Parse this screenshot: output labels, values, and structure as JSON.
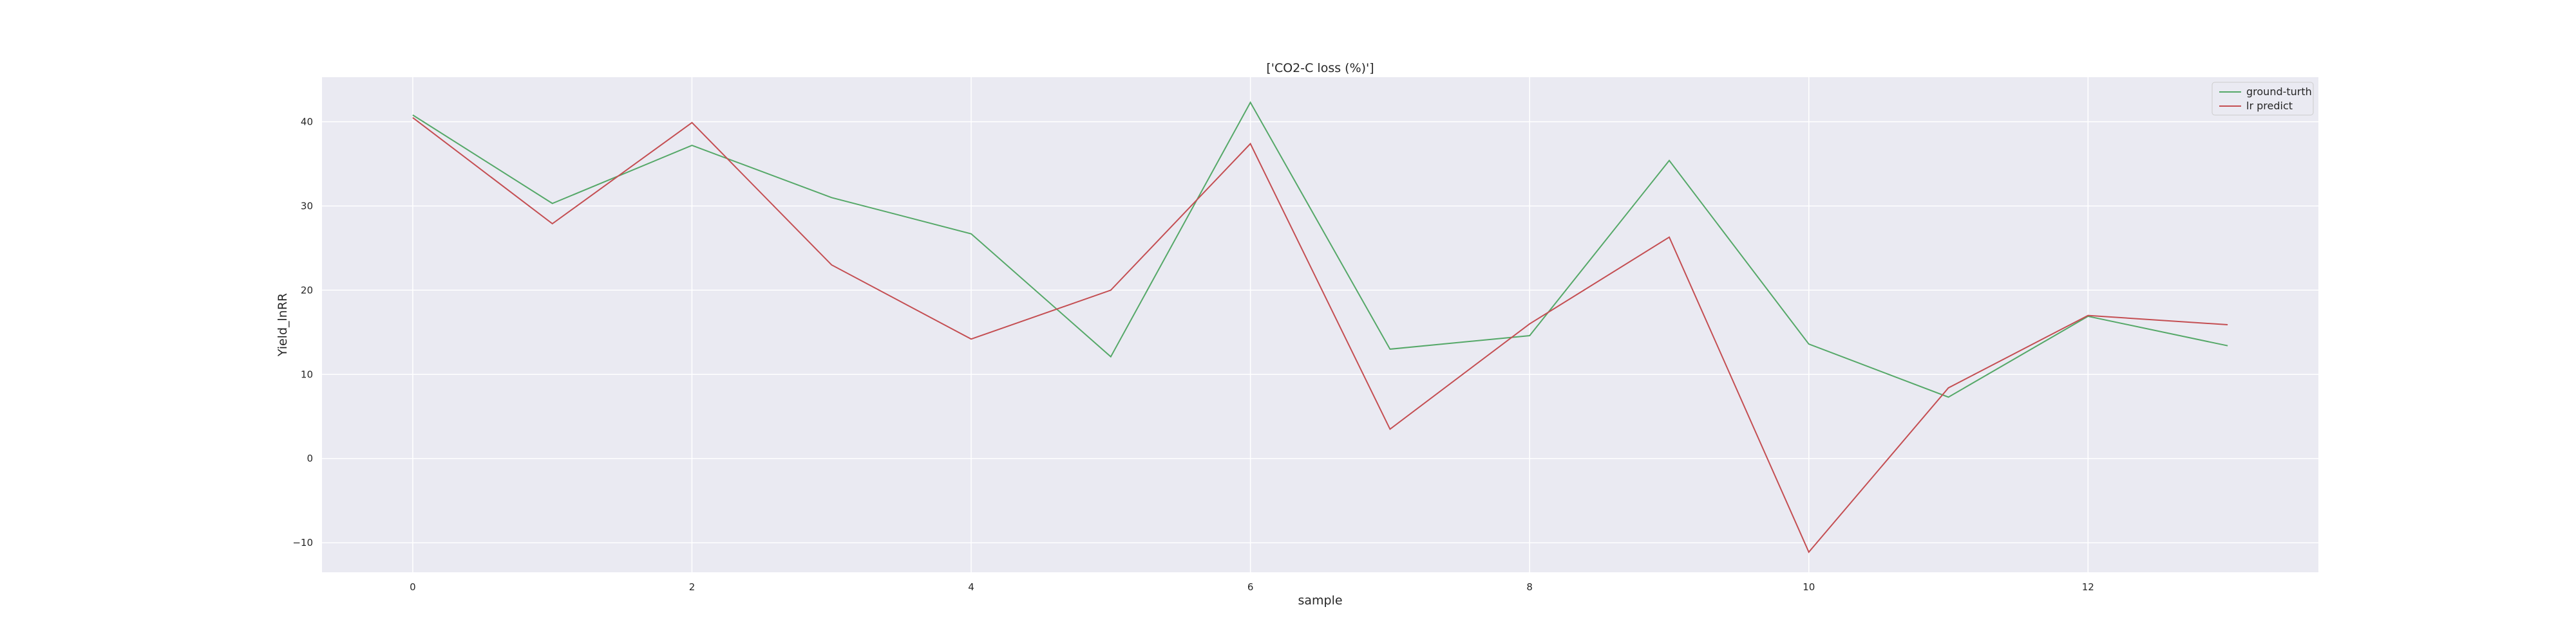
{
  "chart_data": {
    "type": "line",
    "title": "['CO2-C loss (%)']",
    "xlabel": "sample",
    "ylabel": "Yield_lnRR",
    "x": [
      0,
      1,
      2,
      3,
      4,
      5,
      6,
      7,
      8,
      9,
      10,
      11,
      12,
      13
    ],
    "xlim": [
      -0.65,
      13.65
    ],
    "ylim": [
      -13.5,
      45.3
    ],
    "xticks": [
      0,
      2,
      4,
      6,
      8,
      10,
      12
    ],
    "yticks": [
      -10,
      0,
      10,
      20,
      30,
      40
    ],
    "ytick_labels": [
      "−10",
      "0",
      "10",
      "20",
      "30",
      "40"
    ],
    "grid": true,
    "legend_position": "top-right",
    "background_color": "#eaeaf2",
    "grid_color": "#ffffff",
    "series": [
      {
        "name": "ground-turth",
        "color": "#55a868",
        "values": [
          40.8,
          30.3,
          37.2,
          31.0,
          26.7,
          12.1,
          42.3,
          13.0,
          14.6,
          35.4,
          13.6,
          7.3,
          16.9,
          13.4
        ]
      },
      {
        "name": "lr predict",
        "color": "#c44e52",
        "values": [
          40.5,
          27.9,
          39.9,
          23.0,
          14.2,
          20.0,
          37.4,
          3.5,
          16.0,
          26.3,
          -11.1,
          8.4,
          17.0,
          15.9
        ]
      }
    ]
  }
}
